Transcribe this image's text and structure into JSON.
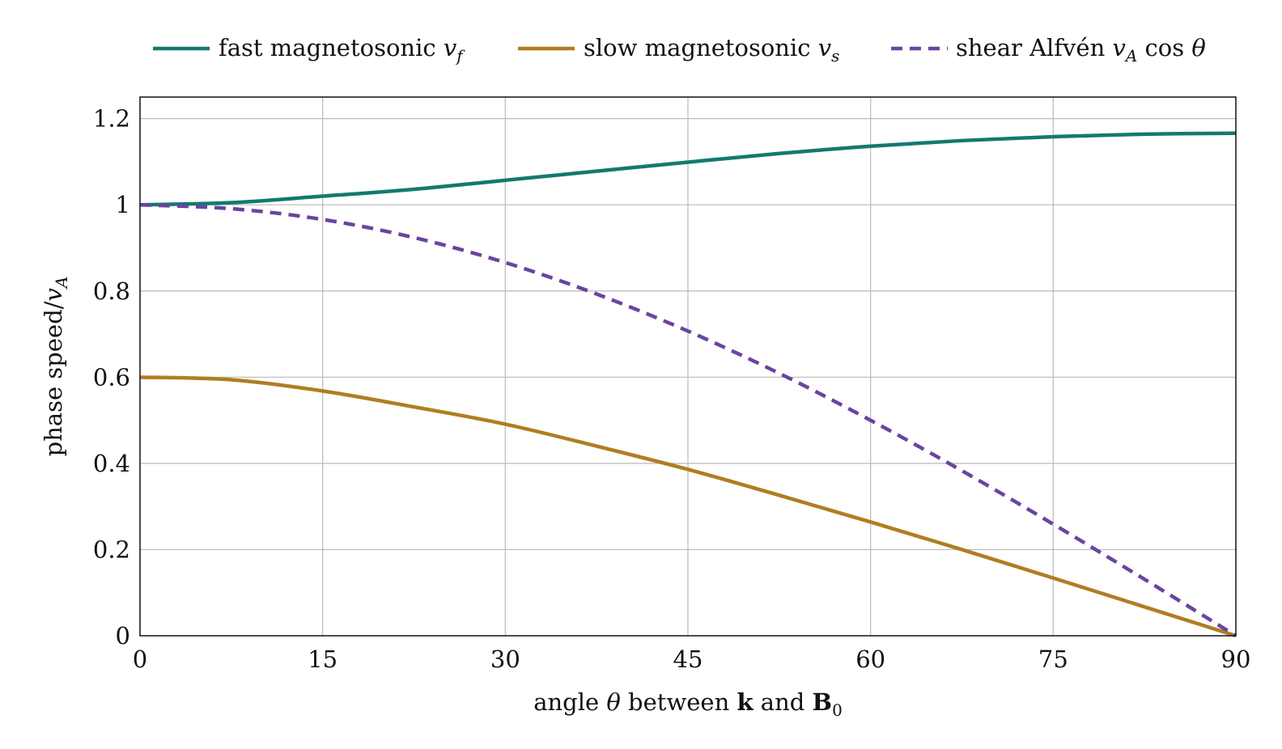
{
  "chart_data": {
    "type": "line",
    "legend_placement": "top",
    "grid": true,
    "xlim": [
      0,
      90
    ],
    "ylim": [
      0,
      1.25
    ],
    "x_ticks": [
      "0",
      "15",
      "30",
      "45",
      "60",
      "75",
      "90"
    ],
    "x_tick_values": [
      0,
      15,
      30,
      45,
      60,
      75,
      90
    ],
    "y_ticks": [
      "0",
      "0.2",
      "0.4",
      "0.6",
      "0.8",
      "1",
      "1.2"
    ],
    "y_tick_values": [
      0,
      0.2,
      0.4,
      0.6,
      0.8,
      1.0,
      1.2
    ],
    "xlabel": {
      "prefix": "angle ",
      "theta": "θ",
      "middle": " between ",
      "k": "k",
      "and": " and ",
      "B": "B",
      "sub": "0"
    },
    "ylabel": {
      "text": "phase speed/",
      "v": "v",
      "sub": "A"
    },
    "x": [
      0,
      7.5,
      15,
      22.5,
      30,
      37.5,
      45,
      52.5,
      60,
      67.5,
      75,
      82.5,
      90
    ],
    "series": [
      {
        "key": "fast",
        "legend_text": "fast magnetosonic ",
        "legend_math": "v",
        "legend_sub": "f",
        "color": "#127a6e",
        "dash": false,
        "values": [
          1.0,
          1.005,
          1.02,
          1.036,
          1.057,
          1.078,
          1.099,
          1.119,
          1.136,
          1.149,
          1.158,
          1.164,
          1.166
        ]
      },
      {
        "key": "slow",
        "legend_text": "slow magnetosonic ",
        "legend_math": "v",
        "legend_sub": "s",
        "color": "#b07d22",
        "dash": false,
        "values": [
          0.6,
          0.594,
          0.568,
          0.531,
          0.491,
          0.44,
          0.386,
          0.326,
          0.264,
          0.2,
          0.134,
          0.067,
          0.0
        ]
      },
      {
        "key": "alfven",
        "legend_text": "shear Alfvén ",
        "legend_math": "v",
        "legend_sub": "A",
        "legend_tail": " cos ",
        "legend_theta": "θ",
        "color": "#6a44a0",
        "dash": true,
        "values": [
          1.0,
          0.991,
          0.966,
          0.924,
          0.866,
          0.793,
          0.707,
          0.609,
          0.5,
          0.383,
          0.259,
          0.131,
          0.0
        ]
      }
    ]
  }
}
